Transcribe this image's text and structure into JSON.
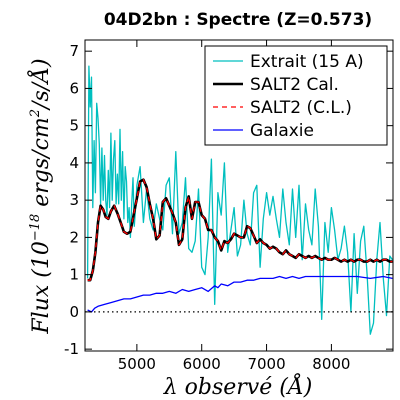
{
  "chart_data": {
    "type": "line",
    "title": "04D2bn : Spectre (Z=0.573)",
    "xlabel": "λ observé (Å)",
    "ylabel": "Flux (10^-18 ergs/cm^2/s/Å)",
    "ylabel_parts": {
      "pre": "Flux (10",
      "exp": "−18",
      "post": " ergs/cm",
      "exp2": "2",
      "post2": "/s/Å)"
    },
    "xlim": [
      4200,
      8950
    ],
    "ylim": [
      -1.05,
      7.3
    ],
    "xticks": [
      5000,
      6000,
      7000,
      8000
    ],
    "xtick_labels": [
      "5000",
      "6000",
      "7000",
      "8000"
    ],
    "yticks": [
      -1,
      0,
      1,
      2,
      3,
      4,
      5,
      6,
      7
    ],
    "ytick_labels": [
      "-1",
      "0",
      "1",
      "2",
      "3",
      "4",
      "5",
      "6",
      "7"
    ],
    "zero_line": {
      "y": 0,
      "style": "dotted"
    },
    "legend_placement": "top-right",
    "series": [
      {
        "name": "Extrait (15 A)",
        "color": "#00bfbf",
        "style": "solid",
        "x": [
          4240,
          4260,
          4280,
          4300,
          4320,
          4340,
          4360,
          4380,
          4400,
          4420,
          4440,
          4460,
          4480,
          4500,
          4520,
          4540,
          4560,
          4580,
          4600,
          4620,
          4640,
          4660,
          4680,
          4700,
          4720,
          4740,
          4760,
          4780,
          4800,
          4820,
          4840,
          4860,
          4880,
          4900,
          4920,
          4940,
          4960,
          4980,
          5000,
          5050,
          5100,
          5150,
          5200,
          5250,
          5300,
          5350,
          5400,
          5450,
          5500,
          5550,
          5600,
          5650,
          5700,
          5750,
          5800,
          5850,
          5900,
          5950,
          6000,
          6050,
          6100,
          6150,
          6200,
          6250,
          6300,
          6350,
          6400,
          6450,
          6500,
          6550,
          6600,
          6650,
          6700,
          6750,
          6800,
          6850,
          6900,
          6950,
          7000,
          7050,
          7100,
          7150,
          7200,
          7250,
          7300,
          7350,
          7400,
          7450,
          7500,
          7550,
          7600,
          7650,
          7700,
          7750,
          7800,
          7850,
          7900,
          7950,
          8000,
          8050,
          8100,
          8150,
          8200,
          8250,
          8300,
          8350,
          8400,
          8450,
          8500,
          8550,
          8600,
          8650,
          8700,
          8750,
          8800,
          8850,
          8900,
          8940
        ],
        "y": [
          0.9,
          6.6,
          5.5,
          6.3,
          2.8,
          4.6,
          3.2,
          5.6,
          5.2,
          4.5,
          2.9,
          4.4,
          3.0,
          4.2,
          3.0,
          2.6,
          3.8,
          2.8,
          4.8,
          3.0,
          4.1,
          4.6,
          2.9,
          3.7,
          2.9,
          4.9,
          3.0,
          4.3,
          2.5,
          3.9,
          3.5,
          2.4,
          2.8,
          2.0,
          2.9,
          3.6,
          2.3,
          2.8,
          3.4,
          3.9,
          2.4,
          3.3,
          2.5,
          2.2,
          2.9,
          2.5,
          2.2,
          3.4,
          3.6,
          2.1,
          4.3,
          2.1,
          2.4,
          3.6,
          1.7,
          1.6,
          1.9,
          3.3,
          1.2,
          1.0,
          2.0,
          4.1,
          0.2,
          3.2,
          2.6,
          4.0,
          1.6,
          2.2,
          2.8,
          1.5,
          1.8,
          3.0,
          2.1,
          1.8,
          3.2,
          3.4,
          1.2,
          2.5,
          3.2,
          2.6,
          3.1,
          2.5,
          2.0,
          3.3,
          2.4,
          1.8,
          3.3,
          2.0,
          3.4,
          1.4,
          2.9,
          2.2,
          1.8,
          3.3,
          2.3,
          -0.2,
          2.4,
          1.6,
          2.8,
          2.2,
          1.4,
          1.7,
          2.3,
          1.6,
          0.0,
          2.1,
          0.5,
          1.9,
          2.3,
          1.0,
          -0.6,
          -0.3,
          1.4,
          2.4,
          0.9,
          -0.1,
          1.5,
          1.4
        ]
      },
      {
        "name": "SALT2 Cal.",
        "color": "#000000",
        "style": "solid-thick",
        "x": [
          4240,
          4280,
          4320,
          4360,
          4400,
          4440,
          4480,
          4520,
          4560,
          4600,
          4650,
          4700,
          4750,
          4800,
          4850,
          4900,
          4950,
          5000,
          5050,
          5100,
          5150,
          5200,
          5250,
          5300,
          5350,
          5400,
          5450,
          5500,
          5550,
          5600,
          5650,
          5700,
          5750,
          5800,
          5850,
          5900,
          5950,
          6000,
          6050,
          6100,
          6150,
          6200,
          6250,
          6300,
          6350,
          6400,
          6450,
          6500,
          6550,
          6600,
          6650,
          6700,
          6750,
          6800,
          6850,
          6900,
          6950,
          7000,
          7050,
          7100,
          7150,
          7200,
          7250,
          7300,
          7350,
          7400,
          7450,
          7500,
          7550,
          7600,
          7650,
          7700,
          7750,
          7800,
          7850,
          7900,
          7950,
          8000,
          8050,
          8100,
          8150,
          8200,
          8250,
          8300,
          8350,
          8400,
          8450,
          8500,
          8550,
          8600,
          8650,
          8700,
          8750,
          8800,
          8850,
          8900,
          8940
        ],
        "y": [
          0.85,
          0.85,
          1.1,
          1.6,
          2.4,
          2.85,
          2.75,
          2.55,
          2.5,
          2.7,
          2.85,
          2.65,
          2.4,
          2.15,
          2.1,
          2.15,
          2.6,
          3.05,
          3.5,
          3.55,
          3.35,
          2.9,
          2.5,
          1.95,
          2.05,
          2.95,
          3.05,
          2.85,
          2.65,
          2.4,
          1.8,
          1.95,
          2.8,
          3.1,
          2.5,
          2.95,
          2.95,
          2.6,
          2.5,
          2.2,
          2.2,
          2.0,
          1.9,
          1.65,
          1.9,
          1.85,
          1.95,
          2.1,
          2.05,
          2.0,
          2.0,
          2.3,
          2.25,
          2.05,
          1.85,
          1.95,
          1.85,
          1.8,
          1.7,
          1.75,
          1.7,
          1.6,
          1.55,
          1.65,
          1.55,
          1.5,
          1.45,
          1.55,
          1.5,
          1.45,
          1.5,
          1.45,
          1.5,
          1.45,
          1.4,
          1.45,
          1.4,
          1.4,
          1.45,
          1.4,
          1.35,
          1.4,
          1.35,
          1.4,
          1.35,
          1.4,
          1.4,
          1.35,
          1.35,
          1.4,
          1.35,
          1.4,
          1.35,
          1.4,
          1.4,
          1.35,
          1.35
        ]
      },
      {
        "name": "SALT2 (C.L.)",
        "color": "#ff0000",
        "style": "dashed",
        "x": [
          4240,
          4280,
          4320,
          4360,
          4400,
          4440,
          4480,
          4520,
          4560,
          4600,
          4650,
          4700,
          4750,
          4800,
          4850,
          4900,
          4950,
          5000,
          5050,
          5100,
          5150,
          5200,
          5250,
          5300,
          5350,
          5400,
          5450,
          5500,
          5550,
          5600,
          5650,
          5700,
          5750,
          5800,
          5850,
          5900,
          5950,
          6000,
          6050,
          6100,
          6150,
          6200,
          6250,
          6300,
          6350,
          6400,
          6450,
          6500,
          6550,
          6600,
          6650,
          6700,
          6750,
          6800,
          6850,
          6900,
          6950,
          7000,
          7050,
          7100,
          7150,
          7200,
          7250,
          7300,
          7350,
          7400,
          7450,
          7500,
          7550,
          7600,
          7650,
          7700,
          7750,
          7800,
          7850,
          7900,
          7950,
          8000,
          8050,
          8100,
          8150,
          8200,
          8250,
          8300,
          8350,
          8400,
          8450,
          8500,
          8550,
          8600,
          8650,
          8700,
          8750,
          8800,
          8850,
          8900,
          8940
        ],
        "y": [
          0.85,
          0.85,
          1.1,
          1.6,
          2.4,
          2.85,
          2.75,
          2.55,
          2.5,
          2.7,
          2.85,
          2.65,
          2.4,
          2.15,
          2.1,
          2.15,
          2.6,
          3.05,
          3.5,
          3.55,
          3.35,
          2.9,
          2.5,
          1.95,
          2.05,
          2.95,
          3.05,
          2.85,
          2.65,
          2.4,
          1.8,
          1.95,
          2.8,
          3.1,
          2.5,
          2.95,
          2.95,
          2.6,
          2.5,
          2.2,
          2.2,
          2.0,
          1.9,
          1.65,
          1.9,
          1.85,
          1.95,
          2.1,
          2.05,
          2.0,
          2.0,
          2.3,
          2.25,
          2.05,
          1.85,
          1.95,
          1.85,
          1.8,
          1.7,
          1.75,
          1.7,
          1.6,
          1.55,
          1.65,
          1.55,
          1.5,
          1.45,
          1.55,
          1.5,
          1.45,
          1.5,
          1.45,
          1.5,
          1.45,
          1.4,
          1.45,
          1.4,
          1.4,
          1.45,
          1.4,
          1.35,
          1.4,
          1.35,
          1.4,
          1.35,
          1.4,
          1.4,
          1.35,
          1.35,
          1.4,
          1.35,
          1.4,
          1.35,
          1.4,
          1.4,
          1.35,
          1.35
        ]
      },
      {
        "name": "Galaxie",
        "color": "#0000ff",
        "style": "solid",
        "x": [
          4240,
          4300,
          4350,
          4400,
          4500,
          4600,
          4700,
          4800,
          4900,
          5000,
          5100,
          5200,
          5300,
          5400,
          5500,
          5600,
          5700,
          5800,
          5900,
          6000,
          6100,
          6200,
          6250,
          6300,
          6400,
          6500,
          6600,
          6700,
          6800,
          6900,
          7000,
          7100,
          7200,
          7300,
          7400,
          7500,
          7600,
          7700,
          7800,
          7900,
          8000,
          8200,
          8400,
          8600,
          8800,
          8940
        ],
        "y": [
          0.05,
          0.0,
          0.1,
          0.15,
          0.2,
          0.25,
          0.3,
          0.35,
          0.35,
          0.4,
          0.45,
          0.45,
          0.5,
          0.5,
          0.55,
          0.5,
          0.6,
          0.55,
          0.6,
          0.65,
          0.55,
          0.7,
          0.65,
          0.75,
          0.7,
          0.8,
          0.8,
          0.85,
          0.85,
          0.9,
          0.9,
          0.9,
          0.95,
          0.9,
          0.95,
          0.9,
          0.95,
          0.95,
          0.95,
          0.95,
          0.95,
          0.95,
          0.95,
          0.9,
          0.95,
          0.9
        ]
      }
    ]
  }
}
